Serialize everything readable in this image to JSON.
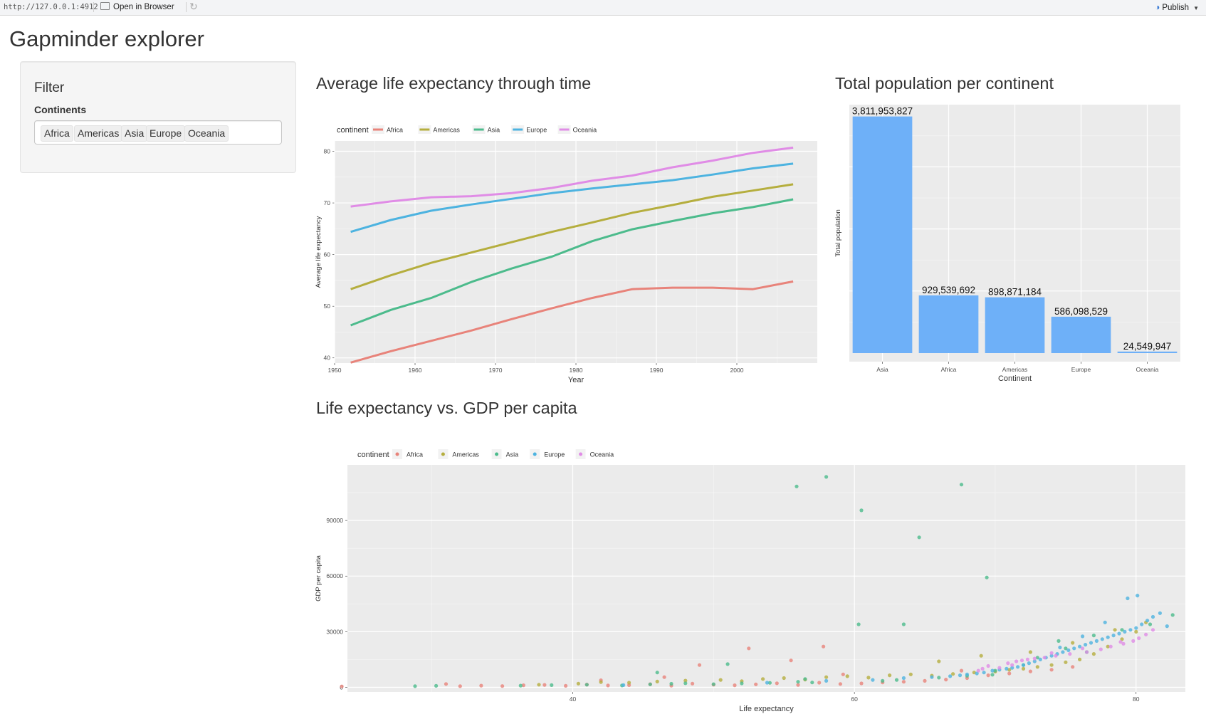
{
  "toolbar": {
    "url": "http://127.0.0.1:4912",
    "open_in_browser": "Open in Browser",
    "refresh_icon": "refresh-icon",
    "publish": "Publish",
    "publish_icon": "publish-icon"
  },
  "app": {
    "title": "Gapminder explorer"
  },
  "sidebar": {
    "panel_title": "Filter",
    "field_label": "Continents",
    "selected": [
      "Africa",
      "Americas",
      "Asia",
      "Europe",
      "Oceania"
    ]
  },
  "colors": {
    "Africa": "#E8837A",
    "Americas": "#B5AE3E",
    "Asia": "#4CBB8C",
    "Europe": "#4DB3E0",
    "Oceania": "#E08CE6",
    "bar_fill": "#6EB0F8",
    "panel_bg": "#EBEBEB"
  },
  "sections": {
    "life_expectancy_title": "Average life expectancy through time",
    "population_title": "Total population per continent",
    "scatter_title": "Life expectancy vs. GDP per capita"
  },
  "chart_data": [
    {
      "type": "line",
      "title": "Average life expectancy through time",
      "xlabel": "Year",
      "ylabel": "Average life expectancy",
      "legend_title": "continent",
      "legend_position": "top-left",
      "xlim": [
        1950,
        2010
      ],
      "ylim": [
        39,
        82
      ],
      "xticks": [
        1950,
        1960,
        1970,
        1980,
        1990,
        2000
      ],
      "yticks": [
        40,
        50,
        60,
        70,
        80
      ],
      "grid": true,
      "x": [
        1952,
        1957,
        1962,
        1967,
        1972,
        1977,
        1982,
        1987,
        1992,
        1997,
        2002,
        2007
      ],
      "series": [
        {
          "name": "Africa",
          "values": [
            39.1,
            41.3,
            43.3,
            45.3,
            47.5,
            49.6,
            51.6,
            53.3,
            53.6,
            53.6,
            53.3,
            54.8
          ]
        },
        {
          "name": "Americas",
          "values": [
            53.3,
            56.0,
            58.4,
            60.4,
            62.4,
            64.4,
            66.2,
            68.1,
            69.6,
            71.2,
            72.4,
            73.6
          ]
        },
        {
          "name": "Asia",
          "values": [
            46.3,
            49.3,
            51.6,
            54.7,
            57.3,
            59.6,
            62.6,
            64.9,
            66.5,
            68.0,
            69.2,
            70.7
          ]
        },
        {
          "name": "Europe",
          "values": [
            64.4,
            66.7,
            68.5,
            69.7,
            70.8,
            71.9,
            72.8,
            73.6,
            74.4,
            75.5,
            76.7,
            77.6
          ]
        },
        {
          "name": "Oceania",
          "values": [
            69.3,
            70.3,
            71.1,
            71.3,
            71.9,
            72.9,
            74.3,
            75.3,
            76.9,
            78.2,
            79.7,
            80.7
          ]
        }
      ]
    },
    {
      "type": "bar",
      "title": "Total population per continent",
      "xlabel": "Continent",
      "ylabel": "Total population",
      "categories": [
        "Asia",
        "Africa",
        "Americas",
        "Europe",
        "Oceania"
      ],
      "values": [
        3811953827,
        929539692,
        898871184,
        586098529,
        24549947
      ],
      "data_labels": [
        "3,811,953,827",
        "929,539,692",
        "898,871,184",
        "586,098,529",
        "24,549,947"
      ],
      "ylim": [
        0,
        4000000000
      ],
      "grid": true
    },
    {
      "type": "scatter",
      "title": "Life expectancy vs. GDP per capita",
      "xlabel": "Life expectancy",
      "ylabel": "GDP per capita",
      "legend_title": "continent",
      "legend_position": "top-left",
      "xlim": [
        24,
        83.5
      ],
      "ylim": [
        -2500,
        120000
      ],
      "xticks": [
        40,
        60,
        80
      ],
      "yticks": [
        0,
        30000,
        60000,
        90000
      ],
      "grid": true,
      "series": [
        {
          "name": "Africa",
          "x": [
            23.6,
            31.0,
            32.0,
            33.5,
            35.0,
            36.5,
            38.0,
            39.5,
            41.0,
            42.5,
            44.0,
            45.5,
            47.0,
            48.5,
            50.0,
            51.5,
            53.0,
            54.5,
            56.0,
            57.5,
            59.0,
            60.5,
            62.0,
            63.5,
            65.0,
            66.5,
            68.0,
            69.5,
            71.0,
            72.5,
            74.0,
            75.5,
            49.0,
            55.5,
            59.2,
            52.5,
            57.8,
            42.0,
            46.5,
            67.6
          ],
          "y": [
            500,
            1800,
            600,
            900,
            700,
            1100,
            1300,
            800,
            1500,
            1000,
            1200,
            1700,
            900,
            2000,
            1400,
            1100,
            1600,
            2200,
            1300,
            2500,
            1800,
            2100,
            2600,
            3000,
            3500,
            4200,
            5000,
            6500,
            7500,
            8600,
            9500,
            11000,
            12000,
            14500,
            7000,
            21000,
            22000,
            3800,
            5500,
            9000
          ]
        },
        {
          "name": "Americas",
          "x": [
            37.6,
            40.4,
            42.0,
            44.0,
            46.0,
            48.0,
            50.5,
            52.0,
            53.5,
            55.0,
            56.5,
            58.0,
            59.5,
            61.0,
            62.5,
            64.0,
            65.5,
            67.0,
            68.5,
            70.0,
            71.0,
            72.0,
            73.0,
            74.0,
            75.0,
            76.0,
            77.0,
            78.0,
            79.0,
            80.0,
            80.7,
            66.0,
            69.0,
            72.5,
            75.5,
            78.5
          ],
          "y": [
            1400,
            2000,
            2800,
            2500,
            3100,
            3600,
            4000,
            3300,
            4500,
            5000,
            4200,
            5500,
            6000,
            5200,
            6500,
            7000,
            6300,
            7200,
            8000,
            8500,
            9500,
            10000,
            11000,
            12000,
            13500,
            15000,
            18000,
            22000,
            26000,
            30000,
            35000,
            14000,
            17000,
            19000,
            24000,
            31000
          ]
        },
        {
          "name": "Asia",
          "x": [
            28.8,
            30.3,
            36.3,
            38.5,
            41.0,
            43.5,
            45.5,
            47.0,
            48.0,
            50.0,
            52.0,
            54.0,
            55.9,
            56.0,
            57.0,
            58.0,
            60.3,
            60.5,
            62.0,
            63.0,
            64.6,
            66.0,
            67.6,
            68.0,
            69.4,
            70.0,
            72.0,
            73.0,
            75.0,
            77.0,
            79.0,
            81.0,
            82.6,
            46.0,
            51.0,
            56.5,
            63.5,
            69.8,
            74.5,
            76.5
          ],
          "y": [
            600,
            800,
            900,
            1200,
            1400,
            1000,
            1600,
            1900,
            2200,
            1700,
            2100,
            2400,
            108382,
            3000,
            2600,
            113523,
            34000,
            95458,
            3500,
            4000,
            80894,
            5200,
            109348,
            6200,
            59265,
            9000,
            12000,
            16000,
            21000,
            28000,
            31000,
            34000,
            39000,
            8000,
            12500,
            4500,
            34000,
            6800,
            25000,
            19000
          ]
        },
        {
          "name": "Europe",
          "x": [
            43.6,
            53.8,
            58.0,
            61.3,
            63.5,
            65.5,
            66.8,
            67.5,
            68.0,
            68.7,
            69.2,
            69.8,
            70.3,
            70.8,
            71.2,
            71.6,
            72.0,
            72.4,
            72.8,
            73.2,
            73.6,
            74.0,
            74.4,
            74.8,
            75.2,
            75.6,
            76.0,
            76.4,
            76.8,
            77.2,
            77.6,
            78.0,
            78.4,
            78.8,
            79.2,
            79.6,
            80.0,
            80.4,
            80.8,
            81.2,
            81.7,
            82.2,
            74.6,
            76.2,
            77.8,
            79.4,
            80.1
          ],
          "y": [
            1200,
            2500,
            3500,
            4000,
            5000,
            5500,
            6000,
            6500,
            7000,
            7500,
            8000,
            9000,
            9500,
            10000,
            10500,
            11000,
            12000,
            13000,
            14000,
            15000,
            16000,
            17000,
            18000,
            19000,
            20000,
            21000,
            22000,
            23000,
            24000,
            25000,
            26000,
            27000,
            28000,
            29000,
            30000,
            31000,
            32000,
            34000,
            36000,
            38000,
            40000,
            33000,
            21500,
            27500,
            35000,
            48000,
            49500
          ]
        },
        {
          "name": "Oceania",
          "x": [
            69.1,
            70.3,
            71.2,
            71.5,
            71.9,
            72.8,
            73.5,
            74.3,
            75.3,
            76.5,
            77.5,
            78.2,
            79.1,
            79.8,
            80.2,
            80.7,
            68.8,
            70.9,
            72.3,
            74.0,
            76.2,
            78.9,
            81.2,
            69.5
          ],
          "y": [
            10000,
            10500,
            12000,
            14000,
            14500,
            15500,
            16000,
            17000,
            18000,
            19000,
            20500,
            22000,
            23500,
            25000,
            26500,
            28500,
            9000,
            13000,
            15000,
            18500,
            21000,
            24500,
            31000,
            11500
          ]
        }
      ]
    }
  ]
}
